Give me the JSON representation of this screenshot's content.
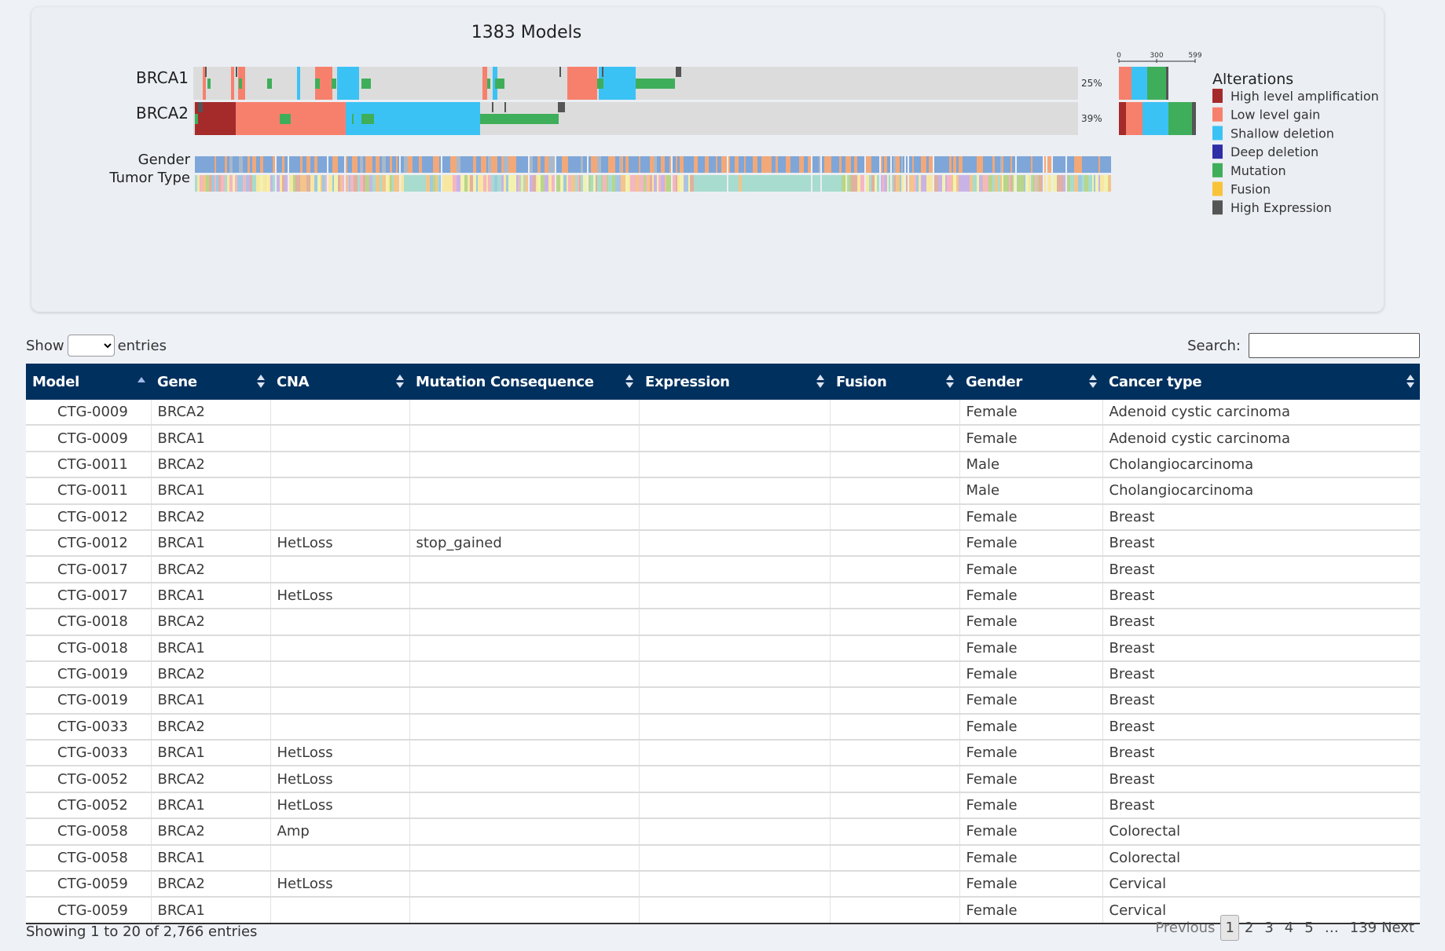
{
  "oncoprint": {
    "title": "1383 Models",
    "genes": [
      {
        "name": "BRCA1",
        "percent": "25%"
      },
      {
        "name": "BRCA2",
        "percent": "39%"
      }
    ],
    "clinical_tracks": [
      "Gender",
      "Tumor Type"
    ],
    "histogram_ticks": [
      "0",
      "300",
      "599"
    ],
    "legend_title": "Alterations",
    "legend": [
      {
        "label": "High level amplification",
        "color": "#a52a2a"
      },
      {
        "label": "Low level gain",
        "color": "#f7806c"
      },
      {
        "label": "Shallow deletion",
        "color": "#3bc2f4"
      },
      {
        "label": "Deep deletion",
        "color": "#2e2ea6"
      },
      {
        "label": "Mutation",
        "color": "#3fae5a"
      },
      {
        "label": "Fusion",
        "color": "#f8c338"
      },
      {
        "label": "High Expression",
        "color": "#555555"
      }
    ]
  },
  "controls": {
    "show_label": "Show",
    "entries_label": "entries",
    "search_label": "Search:"
  },
  "table": {
    "columns": [
      "Model",
      "Gene",
      "CNA",
      "Mutation Consequence",
      "Expression",
      "Fusion",
      "Gender",
      "Cancer type"
    ],
    "rows": [
      [
        "CTG-0009",
        "BRCA2",
        "",
        "",
        "",
        "",
        "Female",
        "Adenoid cystic carcinoma"
      ],
      [
        "CTG-0009",
        "BRCA1",
        "",
        "",
        "",
        "",
        "Female",
        "Adenoid cystic carcinoma"
      ],
      [
        "CTG-0011",
        "BRCA2",
        "",
        "",
        "",
        "",
        "Male",
        "Cholangiocarcinoma"
      ],
      [
        "CTG-0011",
        "BRCA1",
        "",
        "",
        "",
        "",
        "Male",
        "Cholangiocarcinoma"
      ],
      [
        "CTG-0012",
        "BRCA2",
        "",
        "",
        "",
        "",
        "Female",
        "Breast"
      ],
      [
        "CTG-0012",
        "BRCA1",
        "HetLoss",
        "stop_gained",
        "",
        "",
        "Female",
        "Breast"
      ],
      [
        "CTG-0017",
        "BRCA2",
        "",
        "",
        "",
        "",
        "Female",
        "Breast"
      ],
      [
        "CTG-0017",
        "BRCA1",
        "HetLoss",
        "",
        "",
        "",
        "Female",
        "Breast"
      ],
      [
        "CTG-0018",
        "BRCA2",
        "",
        "",
        "",
        "",
        "Female",
        "Breast"
      ],
      [
        "CTG-0018",
        "BRCA1",
        "",
        "",
        "",
        "",
        "Female",
        "Breast"
      ],
      [
        "CTG-0019",
        "BRCA2",
        "",
        "",
        "",
        "",
        "Female",
        "Breast"
      ],
      [
        "CTG-0019",
        "BRCA1",
        "",
        "",
        "",
        "",
        "Female",
        "Breast"
      ],
      [
        "CTG-0033",
        "BRCA2",
        "",
        "",
        "",
        "",
        "Female",
        "Breast"
      ],
      [
        "CTG-0033",
        "BRCA1",
        "HetLoss",
        "",
        "",
        "",
        "Female",
        "Breast"
      ],
      [
        "CTG-0052",
        "BRCA2",
        "HetLoss",
        "",
        "",
        "",
        "Female",
        "Breast"
      ],
      [
        "CTG-0052",
        "BRCA1",
        "HetLoss",
        "",
        "",
        "",
        "Female",
        "Breast"
      ],
      [
        "CTG-0058",
        "BRCA2",
        "Amp",
        "",
        "",
        "",
        "Female",
        "Colorectal"
      ],
      [
        "CTG-0058",
        "BRCA1",
        "",
        "",
        "",
        "",
        "Female",
        "Colorectal"
      ],
      [
        "CTG-0059",
        "BRCA2",
        "HetLoss",
        "",
        "",
        "",
        "Female",
        "Cervical"
      ],
      [
        "CTG-0059",
        "BRCA1",
        "",
        "",
        "",
        "",
        "Female",
        "Cervical"
      ]
    ]
  },
  "footer": {
    "info": "Showing 1 to 20 of 2,766 entries",
    "previous": "Previous",
    "pages": [
      "1",
      "2",
      "3",
      "4",
      "5"
    ],
    "ellipsis": "…",
    "last_page": "139",
    "next": "Next"
  }
}
